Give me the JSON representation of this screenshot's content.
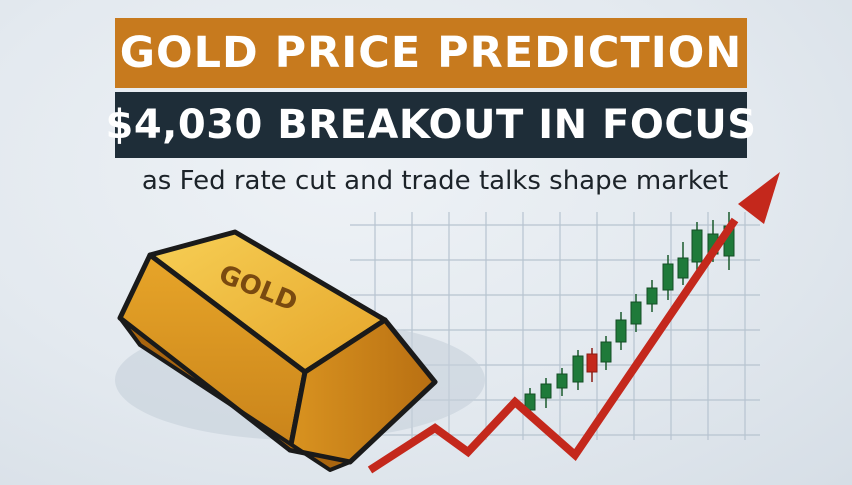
{
  "headline": {
    "line1": "GOLD PRICE PREDICTION",
    "line2": "$4,030 BREAKOUT IN FOCUS",
    "subtitle": "as Fed rate cut and trade talks shape market"
  },
  "illustration": {
    "gold_bar_label": "GOLD",
    "icons": [
      "gold-bar-icon",
      "candlestick-chart-icon",
      "trend-arrow-icon"
    ]
  },
  "colors": {
    "banner_orange": "#c77a1e",
    "banner_navy": "#1e2d38",
    "gold": "#e8a92a",
    "trend_red": "#c4281c",
    "candle_green": "#1f7a3a",
    "candle_red": "#c4281c"
  }
}
